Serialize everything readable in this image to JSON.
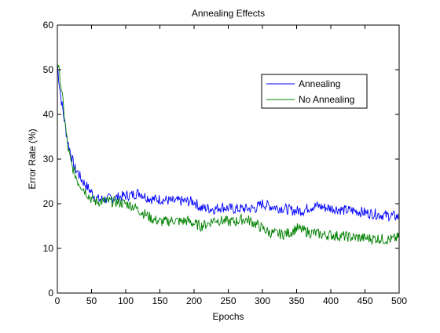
{
  "chart_data": {
    "type": "line",
    "title": "Annealing Effects",
    "xlabel": "Epochs",
    "ylabel": "Error Rate (%)",
    "xlim": [
      0,
      500
    ],
    "ylim": [
      0,
      60
    ],
    "xticks": [
      0,
      50,
      100,
      150,
      200,
      250,
      300,
      350,
      400,
      450,
      500
    ],
    "yticks": [
      0,
      10,
      20,
      30,
      40,
      50,
      60
    ],
    "grid": false,
    "legend_position": "top-right",
    "series": [
      {
        "name": "Annealing",
        "color": "#0000ff",
        "points": [
          [
            0,
            51
          ],
          [
            5,
            44
          ],
          [
            10,
            39
          ],
          [
            15,
            34
          ],
          [
            20,
            31
          ],
          [
            25,
            28
          ],
          [
            30,
            27
          ],
          [
            35,
            25.5
          ],
          [
            40,
            24.5
          ],
          [
            45,
            23.5
          ],
          [
            50,
            22.5
          ],
          [
            55,
            21.5
          ],
          [
            60,
            21
          ],
          [
            70,
            21
          ],
          [
            80,
            21.2
          ],
          [
            90,
            21.5
          ],
          [
            100,
            21.8
          ],
          [
            110,
            22
          ],
          [
            120,
            22.5
          ],
          [
            130,
            21.5
          ],
          [
            140,
            21
          ],
          [
            150,
            21
          ],
          [
            160,
            20.8
          ],
          [
            170,
            20.5
          ],
          [
            180,
            20.6
          ],
          [
            190,
            20.5
          ],
          [
            200,
            20.5
          ],
          [
            210,
            19
          ],
          [
            220,
            19
          ],
          [
            230,
            18.8
          ],
          [
            240,
            19.3
          ],
          [
            250,
            19
          ],
          [
            260,
            18.8
          ],
          [
            270,
            18.9
          ],
          [
            280,
            18.9
          ],
          [
            290,
            19
          ],
          [
            300,
            20
          ],
          [
            310,
            19.5
          ],
          [
            320,
            19.2
          ],
          [
            330,
            19
          ],
          [
            340,
            18.6
          ],
          [
            350,
            18.4
          ],
          [
            360,
            18.5
          ],
          [
            370,
            19.3
          ],
          [
            380,
            19.5
          ],
          [
            390,
            19.2
          ],
          [
            400,
            19
          ],
          [
            410,
            18.8
          ],
          [
            420,
            18.5
          ],
          [
            430,
            18.5
          ],
          [
            440,
            18.3
          ],
          [
            450,
            18
          ],
          [
            460,
            17.8
          ],
          [
            470,
            17.6
          ],
          [
            480,
            17.4
          ],
          [
            490,
            17.3
          ],
          [
            500,
            17
          ]
        ]
      },
      {
        "name": "No Annealing",
        "color": "#008000",
        "points": [
          [
            0,
            52
          ],
          [
            5,
            47
          ],
          [
            10,
            40
          ],
          [
            15,
            33
          ],
          [
            20,
            29
          ],
          [
            25,
            27
          ],
          [
            30,
            25
          ],
          [
            35,
            24
          ],
          [
            40,
            23
          ],
          [
            45,
            22
          ],
          [
            50,
            21
          ],
          [
            55,
            20.5
          ],
          [
            60,
            20.5
          ],
          [
            70,
            20.5
          ],
          [
            80,
            20.5
          ],
          [
            90,
            20.3
          ],
          [
            100,
            20
          ],
          [
            110,
            19.5
          ],
          [
            120,
            18.5
          ],
          [
            130,
            17.5
          ],
          [
            140,
            16.5
          ],
          [
            150,
            16
          ],
          [
            160,
            16
          ],
          [
            170,
            16.3
          ],
          [
            180,
            16
          ],
          [
            190,
            16.2
          ],
          [
            200,
            15.5
          ],
          [
            210,
            15
          ],
          [
            220,
            15.5
          ],
          [
            230,
            16.5
          ],
          [
            240,
            16.2
          ],
          [
            250,
            16
          ],
          [
            260,
            16
          ],
          [
            270,
            16.5
          ],
          [
            280,
            16.3
          ],
          [
            290,
            15.5
          ],
          [
            300,
            14.5
          ],
          [
            310,
            13.5
          ],
          [
            320,
            13.3
          ],
          [
            330,
            13.2
          ],
          [
            340,
            13.5
          ],
          [
            350,
            14.5
          ],
          [
            360,
            14
          ],
          [
            370,
            13.5
          ],
          [
            380,
            13.3
          ],
          [
            390,
            13
          ],
          [
            400,
            13
          ],
          [
            410,
            12.8
          ],
          [
            420,
            12.7
          ],
          [
            430,
            12.5
          ],
          [
            440,
            12.4
          ],
          [
            450,
            12.3
          ],
          [
            460,
            12.2
          ],
          [
            470,
            12.2
          ],
          [
            480,
            12
          ],
          [
            490,
            12
          ],
          [
            500,
            12.5
          ]
        ]
      }
    ]
  }
}
